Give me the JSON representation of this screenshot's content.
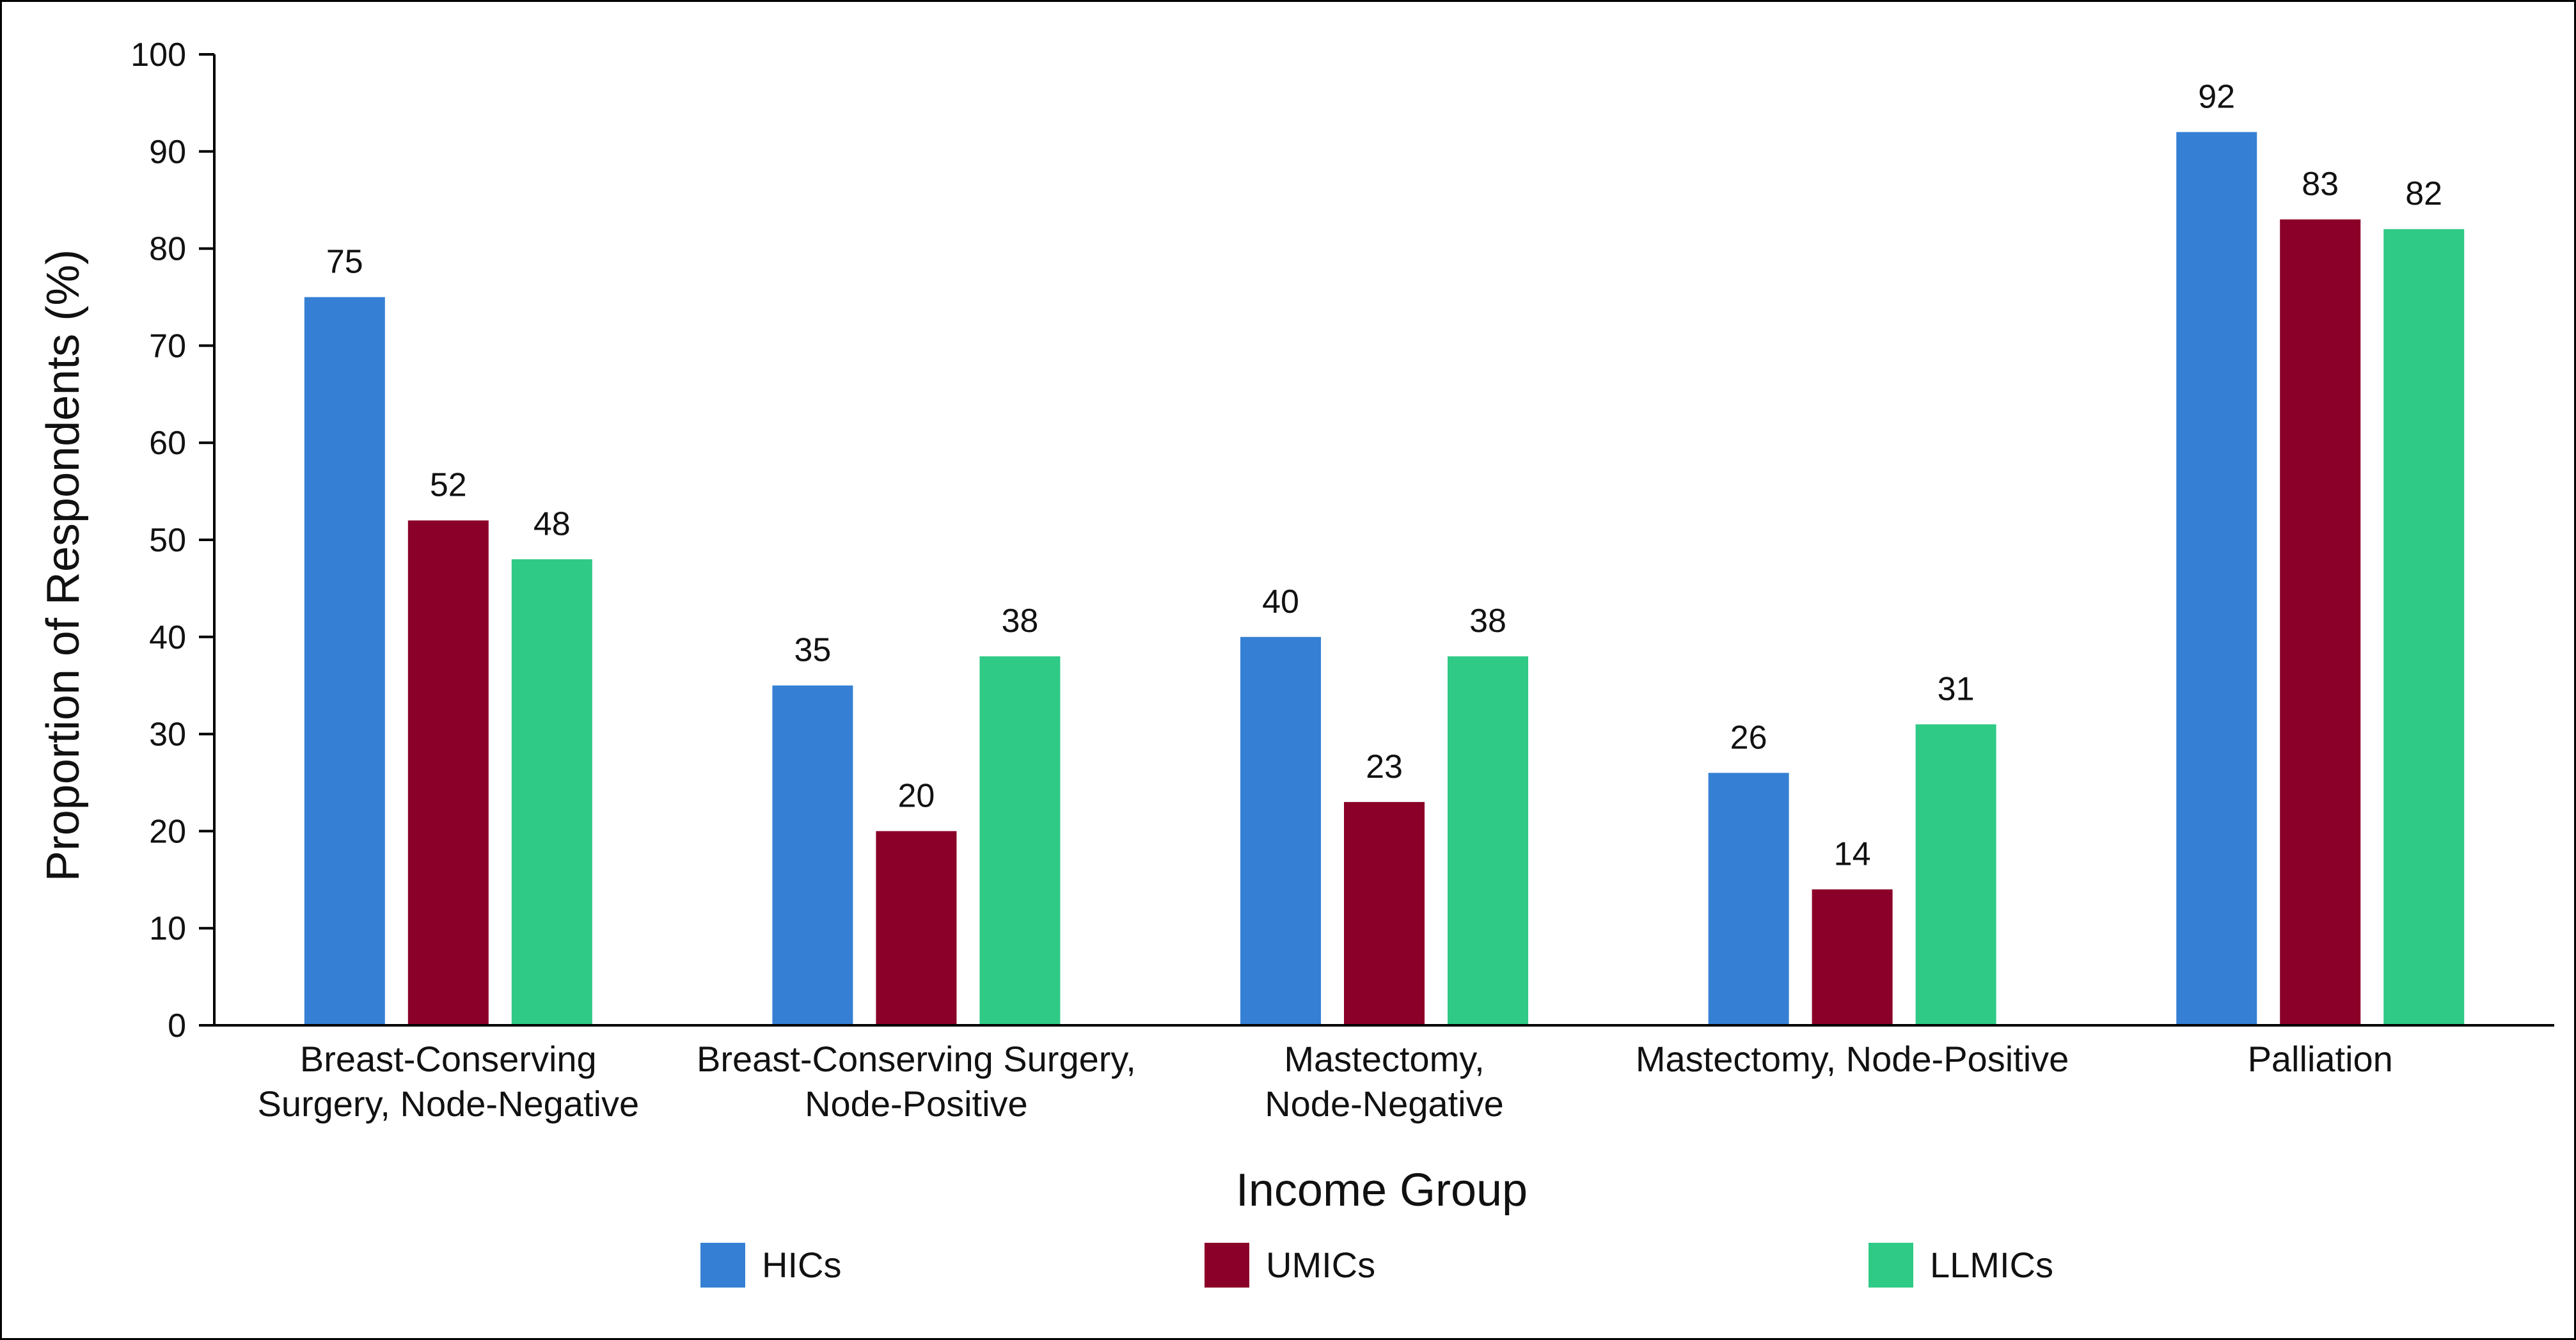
{
  "chart_data": {
    "type": "bar",
    "title": "",
    "xlabel": "Income Group",
    "ylabel": "Proportion of Respondents (%)",
    "ylim": [
      0,
      100
    ],
    "yticks": [
      0,
      10,
      20,
      30,
      40,
      50,
      60,
      70,
      80,
      90,
      100
    ],
    "grid": false,
    "legend_position": "bottom",
    "categories": [
      [
        "Breast-Conserving",
        "Surgery, Node-Negative"
      ],
      [
        "Breast-Conserving Surgery,",
        "Node-Positive"
      ],
      [
        "Mastectomy,",
        "Node-Negative"
      ],
      [
        "Mastectomy, Node-Positive"
      ],
      [
        "Palliation"
      ]
    ],
    "series": [
      {
        "name": "HICs",
        "color": "#3580D4",
        "values": [
          75,
          35,
          40,
          26,
          92
        ]
      },
      {
        "name": "UMICs",
        "color": "#8B0028",
        "values": [
          52,
          20,
          23,
          14,
          83
        ]
      },
      {
        "name": "LLMICs",
        "color": "#2FCA86",
        "values": [
          48,
          38,
          38,
          31,
          82
        ]
      }
    ]
  }
}
